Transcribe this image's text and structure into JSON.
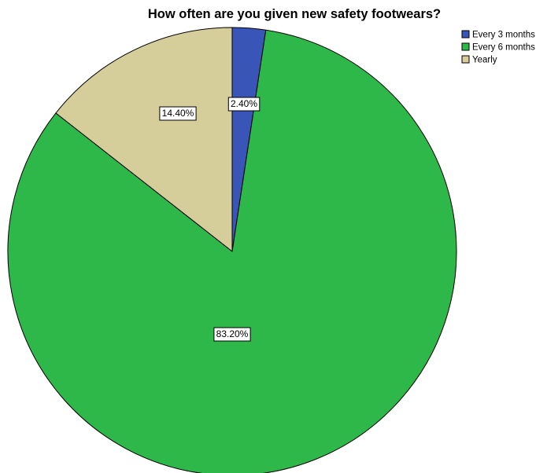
{
  "chart_data": {
    "type": "pie",
    "title": "How often are you given new safety footwears?",
    "slices": [
      {
        "name": "Every 3 months",
        "value": 2.4,
        "label": "2.40%",
        "color": "#3a55b8"
      },
      {
        "name": "Every 6 months",
        "value": 83.2,
        "label": "83.20%",
        "color": "#2fb84a"
      },
      {
        "name": "Yearly",
        "value": 14.4,
        "label": "14.40%",
        "color": "#d5ce9a"
      }
    ],
    "start_angle": "12 o'clock",
    "direction": "clockwise",
    "legend": {
      "position": "top-right",
      "entries": [
        "Every 3 months",
        "Every 6 months",
        "Yearly"
      ]
    },
    "slice_border_color": "#000000"
  }
}
